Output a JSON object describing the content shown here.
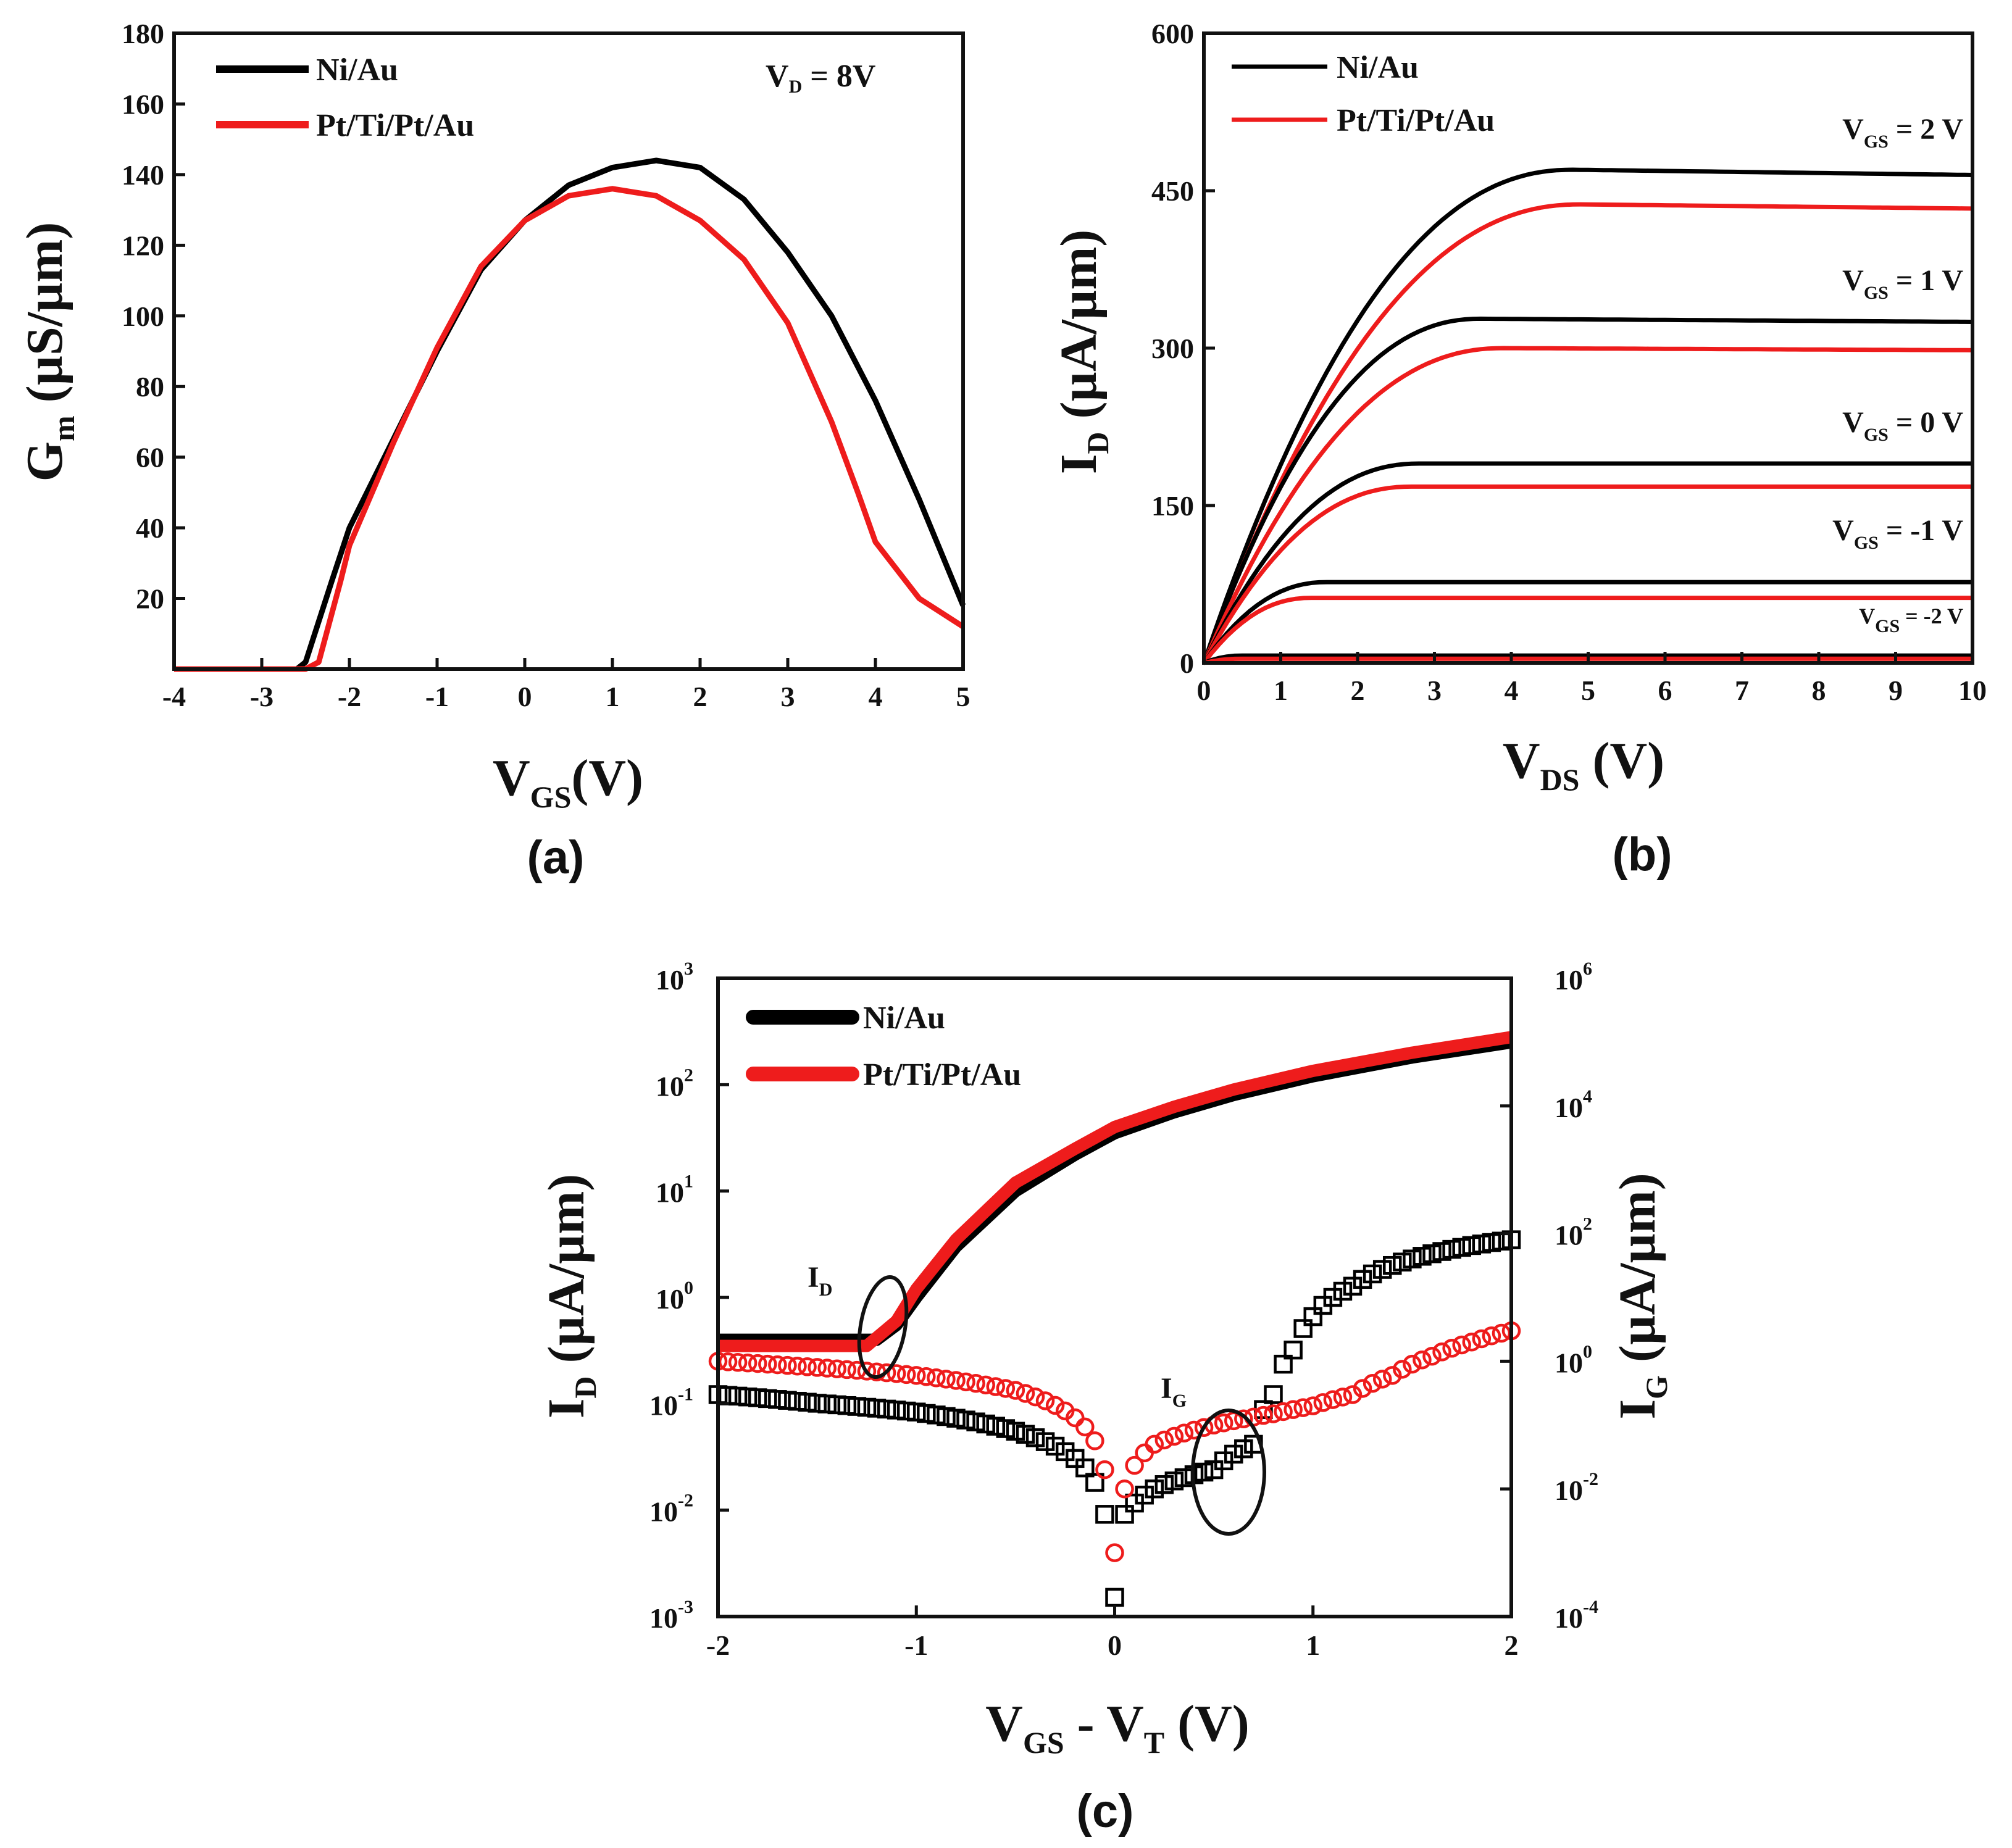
{
  "colors": {
    "series_ni": "#000000",
    "series_pt": "#ee1c1c",
    "axis": "#111111"
  },
  "chart_data": [
    {
      "id": "a",
      "type": "line",
      "caption": "(a)",
      "title": "",
      "xlabel": {
        "main": "V",
        "sub": "GS",
        "rest": "(V)"
      },
      "ylabel": {
        "main": "G",
        "sub": "m",
        "rest": " (µS/µm)"
      },
      "xlim": [
        -4,
        5
      ],
      "ylim": [
        0,
        180
      ],
      "xticks": [
        "-4",
        "-3",
        "-2",
        "-1",
        "0",
        "1",
        "2",
        "3",
        "4",
        "5"
      ],
      "yticks": [
        "20",
        "40",
        "60",
        "80",
        "100",
        "120",
        "140",
        "160",
        "180"
      ],
      "annotation": {
        "main": "V",
        "sub": "D",
        "rest": " = 8V"
      },
      "legend_position": "top-left",
      "series": [
        {
          "name": "Ni/Au",
          "color": "#000000",
          "x": [
            -4,
            -2.6,
            -2.5,
            -2.2,
            -2,
            -1.5,
            -1,
            -0.5,
            0,
            0.5,
            1,
            1.5,
            2,
            2.5,
            3,
            3.5,
            4,
            4.5,
            5
          ],
          "y": [
            0,
            0,
            2,
            25,
            40,
            65,
            90,
            113,
            127,
            137,
            142,
            144,
            142,
            133,
            118,
            100,
            76,
            48,
            18
          ]
        },
        {
          "name": "Pt/Ti/Pt/Au",
          "color": "#ee1c1c",
          "x": [
            -4,
            -2.5,
            -2.35,
            -2.1,
            -2,
            -1.5,
            -1,
            -0.5,
            0,
            0.5,
            1,
            1.5,
            2,
            2.5,
            3,
            3.5,
            3.8,
            4,
            4.5,
            5
          ],
          "y": [
            0,
            0,
            2,
            25,
            35,
            64,
            91,
            114,
            127,
            134,
            136,
            134,
            127,
            116,
            98,
            70,
            50,
            36,
            20,
            12
          ]
        }
      ]
    },
    {
      "id": "b",
      "type": "line",
      "caption": "(b)",
      "title": "",
      "xlabel": {
        "main": "V",
        "sub": "DS",
        "rest": " (V)"
      },
      "ylabel": {
        "main": "I",
        "sub": "D",
        "rest": " (µA/µm)"
      },
      "xlim": [
        0,
        10
      ],
      "ylim": [
        0,
        600
      ],
      "xticks": [
        "0",
        "1",
        "2",
        "3",
        "4",
        "5",
        "6",
        "7",
        "8",
        "9",
        "10"
      ],
      "yticks": [
        "0",
        "150",
        "300",
        "450",
        "600"
      ],
      "legend_position": "top-left",
      "legend": [
        "Ni/Au",
        "Pt/Ti/Pt/Au"
      ],
      "curve_labels": [
        {
          "main": "V",
          "sub": "GS",
          "rest": " = 2 V"
        },
        {
          "main": "V",
          "sub": "GS",
          "rest": " = 1 V"
        },
        {
          "main": "V",
          "sub": "GS",
          "rest": " = 0 V"
        },
        {
          "main": "V",
          "sub": "GS",
          "rest": " = -1 V"
        },
        {
          "main": "V",
          "sub": "GS",
          "rest": " = -2 V"
        }
      ],
      "series": [
        {
          "name": "Ni/Au, VGS = 2 V",
          "color": "#000000",
          "isat": 470,
          "vk": 4.8,
          "vend": 465
        },
        {
          "name": "Pt/Ti/Pt/Au, VGS = 2 V",
          "color": "#ee1c1c",
          "isat": 437,
          "vk": 4.9,
          "vend": 433
        },
        {
          "name": "Ni/Au, VGS = 1 V",
          "color": "#000000",
          "isat": 328,
          "vk": 3.6,
          "vend": 325
        },
        {
          "name": "Pt/Ti/Pt/Au, VGS = 1 V",
          "color": "#ee1c1c",
          "isat": 300,
          "vk": 3.9,
          "vend": 298
        },
        {
          "name": "Ni/Au, VGS = 0 V",
          "color": "#000000",
          "isat": 190,
          "vk": 2.8,
          "vend": 190
        },
        {
          "name": "Pt/Ti/Pt/Au, VGS = 0 V",
          "color": "#ee1c1c",
          "isat": 168,
          "vk": 2.7,
          "vend": 168
        },
        {
          "name": "Ni/Au, VGS = -1 V",
          "color": "#000000",
          "isat": 77,
          "vk": 1.6,
          "vend": 77
        },
        {
          "name": "Pt/Ti/Pt/Au, VGS = -1 V",
          "color": "#ee1c1c",
          "isat": 62,
          "vk": 1.4,
          "vend": 62
        },
        {
          "name": "Ni/Au, VGS = -2 V",
          "color": "#000000",
          "isat": 7,
          "vk": 0.5,
          "vend": 7
        },
        {
          "name": "Pt/Ti/Pt/Au, VGS = -2 V",
          "color": "#ee1c1c",
          "isat": 4,
          "vk": 0.5,
          "vend": 4
        }
      ]
    },
    {
      "id": "c",
      "type": "line",
      "caption": "(c)",
      "title": "",
      "scale": "log",
      "xlabel": {
        "main": "V",
        "sub": "GS",
        "mid": " - V",
        "sub2": "T",
        "rest": " (V)"
      },
      "ylabel_left": {
        "main": "I",
        "sub": "D",
        "rest": " (µA/µm)"
      },
      "ylabel_right": {
        "main": "I",
        "sub": "G",
        "rest": " (µA/µm)"
      },
      "xlim": [
        -2,
        2
      ],
      "ylim_left_exp": [
        -3,
        3
      ],
      "ylim_right_exp": [
        -4,
        6
      ],
      "xticks": [
        "-2",
        "-1",
        "0",
        "1",
        "2"
      ],
      "yticks_left": [
        {
          "base": "10",
          "exp": "-3"
        },
        {
          "base": "10",
          "exp": "-2"
        },
        {
          "base": "10",
          "exp": "-1"
        },
        {
          "base": "10",
          "exp": "0"
        },
        {
          "base": "10",
          "exp": "1"
        },
        {
          "base": "10",
          "exp": "2"
        },
        {
          "base": "10",
          "exp": "3"
        }
      ],
      "yticks_right": [
        {
          "base": "10",
          "exp": "-4"
        },
        {
          "base": "10",
          "exp": "-2"
        },
        {
          "base": "10",
          "exp": "0"
        },
        {
          "base": "10",
          "exp": "2"
        },
        {
          "base": "10",
          "exp": "4"
        },
        {
          "base": "10",
          "exp": "6"
        }
      ],
      "legend_position": "top-left",
      "annotations": [
        {
          "main": "I",
          "sub": "D"
        },
        {
          "main": "I",
          "sub": "G"
        }
      ],
      "series": [
        {
          "name": "Ni/Au",
          "quantity": "ID",
          "axis": "left",
          "color": "#000000",
          "x": [
            -2,
            -1.2,
            -1.1,
            -1.0,
            -0.8,
            -0.5,
            -0.2,
            0,
            0.3,
            0.6,
            1.0,
            1.5,
            2.0
          ],
          "y": [
            0.4,
            0.4,
            0.55,
            1.0,
            3.0,
            10,
            22,
            35,
            55,
            80,
            120,
            180,
            250
          ]
        },
        {
          "name": "Pt/Ti/Pt/Au",
          "quantity": "ID",
          "axis": "left",
          "color": "#ee1c1c",
          "x": [
            -2,
            -1.25,
            -1.1,
            -1.0,
            -0.8,
            -0.5,
            -0.2,
            0,
            0.3,
            0.6,
            1.0,
            1.5,
            2.0
          ],
          "y": [
            0.35,
            0.35,
            0.6,
            1.2,
            3.5,
            12,
            25,
            40,
            62,
            90,
            135,
            200,
            280
          ]
        },
        {
          "name": "Ni/Au",
          "quantity": "IG",
          "axis": "right",
          "color": "#000000",
          "marker": "square",
          "x": [
            -2,
            -1.5,
            -1,
            -0.5,
            -0.2,
            -0.05,
            0,
            0.05,
            0.2,
            0.5,
            0.7,
            0.8,
            0.9,
            1.0,
            1.2,
            1.5,
            1.8,
            2.0
          ],
          "y": [
            0.3,
            0.22,
            0.16,
            0.08,
            0.03,
            0.004,
            0.0002,
            0.004,
            0.01,
            0.02,
            0.05,
            0.3,
            1.5,
            5,
            15,
            40,
            65,
            80
          ]
        },
        {
          "name": "Pt/Ti/Pt/Au",
          "quantity": "IG",
          "axis": "right",
          "color": "#ee1c1c",
          "marker": "circle",
          "x": [
            -2,
            -1.5,
            -1,
            -0.5,
            -0.2,
            -0.05,
            0,
            0.05,
            0.2,
            0.5,
            0.8,
            1.0,
            1.2,
            1.4,
            1.6,
            1.8,
            2.0
          ],
          "y": [
            1.0,
            0.8,
            0.6,
            0.35,
            0.13,
            0.02,
            0.001,
            0.01,
            0.05,
            0.1,
            0.15,
            0.2,
            0.3,
            0.6,
            1.2,
            2.0,
            3.0
          ]
        }
      ]
    }
  ]
}
